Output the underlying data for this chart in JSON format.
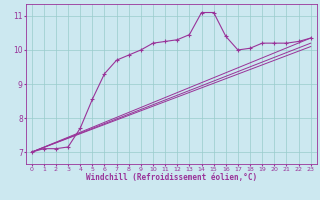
{
  "xlabel": "Windchill (Refroidissement éolien,°C)",
  "background_color": "#cce8f0",
  "grid_color": "#99cccc",
  "line_color": "#993399",
  "xlim": [
    -0.5,
    23.5
  ],
  "ylim": [
    6.65,
    11.35
  ],
  "yticks": [
    7,
    8,
    9,
    10,
    11
  ],
  "xticks": [
    0,
    1,
    2,
    3,
    4,
    5,
    6,
    7,
    8,
    9,
    10,
    11,
    12,
    13,
    14,
    15,
    16,
    17,
    18,
    19,
    20,
    21,
    22,
    23
  ],
  "line1_x": [
    0,
    1,
    2,
    3,
    4,
    5,
    6,
    7,
    8,
    9,
    10,
    11,
    12,
    13,
    14,
    15,
    16,
    17,
    18,
    19,
    20,
    21,
    22,
    23
  ],
  "line1_y": [
    7.0,
    7.1,
    7.1,
    7.15,
    7.7,
    8.55,
    9.3,
    9.7,
    9.85,
    10.0,
    10.2,
    10.25,
    10.3,
    10.45,
    11.1,
    11.1,
    10.4,
    10.0,
    10.05,
    10.2,
    10.2,
    10.2,
    10.25,
    10.35
  ],
  "line2_x": [
    0,
    23
  ],
  "line2_y": [
    7.0,
    10.1
  ],
  "line3_x": [
    0,
    23
  ],
  "line3_y": [
    7.0,
    10.2
  ],
  "line4_x": [
    0,
    23
  ],
  "line4_y": [
    7.0,
    10.35
  ],
  "xtick_fontsize": 4.5,
  "ytick_fontsize": 5.5,
  "xlabel_fontsize": 5.5
}
